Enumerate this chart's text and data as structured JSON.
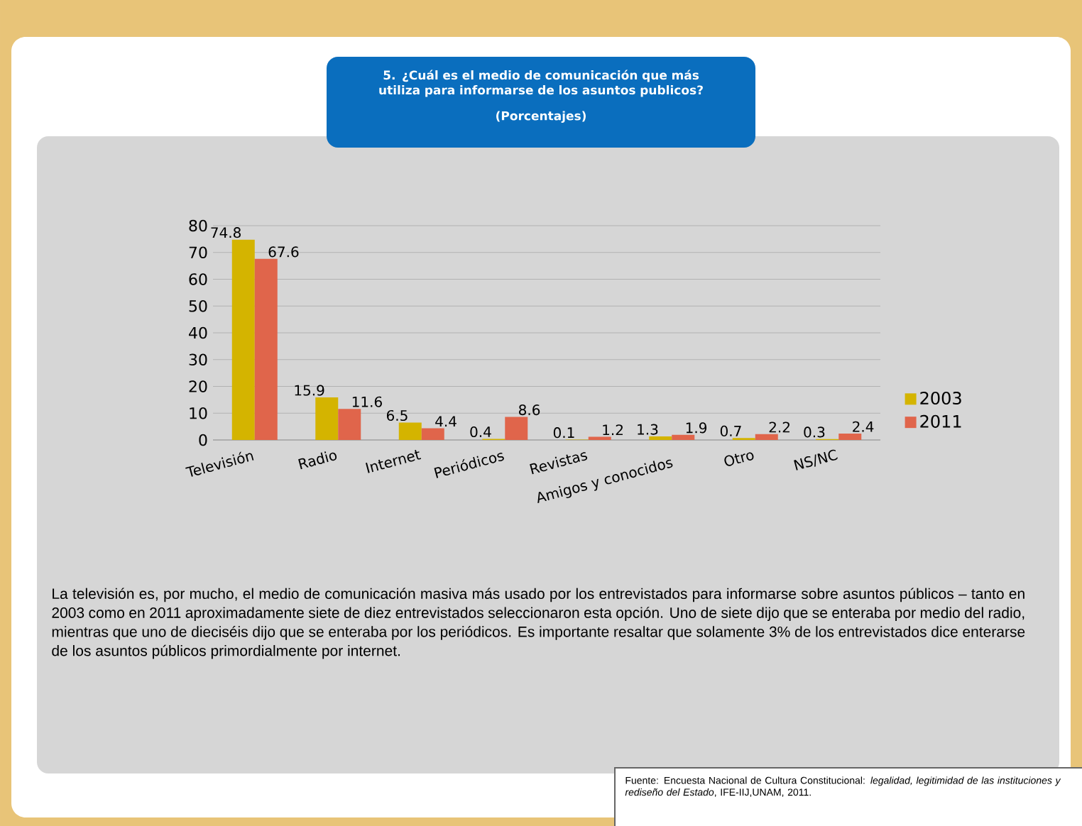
{
  "chart_data": {
    "type": "bar",
    "title": "5. ¿Cuál es el medio de comunicación que más utiliza para informarse de los asuntos publicos?",
    "subtitle": "(Porcentajes)",
    "categories": [
      "Televisión",
      "Radio",
      "Internet",
      "Periódicos",
      "Revistas",
      "Amigos y conocidos",
      "Otro",
      "NS/NC"
    ],
    "series": [
      {
        "name": "2003",
        "color": "#d4b400",
        "values": [
          74.8,
          15.9,
          6.5,
          0.4,
          0.1,
          1.3,
          0.7,
          0.3
        ]
      },
      {
        "name": "2011",
        "color": "#e0654b",
        "values": [
          67.6,
          11.6,
          4.4,
          8.6,
          1.2,
          1.9,
          2.2,
          2.4
        ]
      }
    ],
    "ylim": [
      0,
      80
    ],
    "yticks": [
      0,
      10,
      20,
      30,
      40,
      50,
      60,
      70,
      80
    ],
    "grid": "y",
    "legend": "right",
    "data_labels": true,
    "annotations": [
      "La televisión es, por mucho, el medio de comunicación masiva más usado por los entrevistados para informarse sobre asuntos públicos – tanto en 2003 como en 2011 aproximadamente siete de diez entrevistados seleccionaron esta opción. Uno de siete dijo que se enteraba por medio del radio, mientras que uno de dieciséis dijo que se enteraba por los periódicos. Es importante resaltar que solamente 3% de los entrevistados dice enterarse de los asuntos públicos primordialmente por internet.",
      "Fuente: Encuesta Nacional de Cultura Constitucional: *legalidad, legitimidad de las instituciones y rediseño del Estado*, IFE-IIJ,UNAM, 2011."
    ]
  }
}
